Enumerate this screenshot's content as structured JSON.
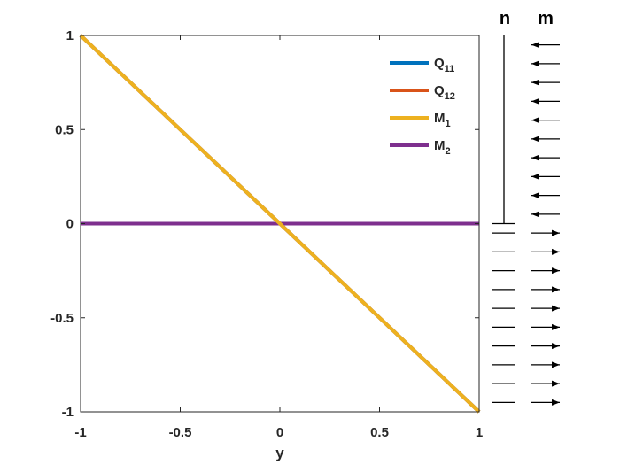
{
  "chart_data": {
    "type": "line",
    "title": "",
    "xlabel": "y",
    "ylabel": "",
    "xlim": [
      -1,
      1
    ],
    "ylim": [
      -1,
      1
    ],
    "xticks": [
      -1,
      -0.5,
      0,
      0.5,
      1
    ],
    "xtick_labels": [
      "-1",
      "-0.5",
      "0",
      "0.5",
      "1"
    ],
    "yticks": [
      -1,
      -0.5,
      0,
      0.5,
      1
    ],
    "ytick_labels": [
      "-1",
      "-0.5",
      "0",
      "0.5",
      "1"
    ],
    "grid": false,
    "legend_position": "top-right",
    "series": [
      {
        "name": "Q11",
        "label_main": "Q",
        "label_sub": "11",
        "color": "#0072BD",
        "x": [
          -1,
          0,
          1
        ],
        "y": [
          1,
          0,
          -1
        ]
      },
      {
        "name": "Q12",
        "label_main": "Q",
        "label_sub": "12",
        "color": "#D95319",
        "x": [
          -1,
          0,
          1
        ],
        "y": [
          1,
          0,
          -1
        ]
      },
      {
        "name": "M1",
        "label_main": "M",
        "label_sub": "1",
        "color": "#EDB120",
        "x": [
          -1,
          0,
          1
        ],
        "y": [
          1,
          0,
          -1
        ]
      },
      {
        "name": "M2",
        "label_main": "M",
        "label_sub": "2",
        "color": "#7E2F8E",
        "x": [
          -1,
          0,
          1
        ],
        "y": [
          0,
          0,
          0
        ]
      }
    ],
    "plot_order": [
      0,
      1,
      3,
      2
    ]
  },
  "diagram": {
    "n_label": "n",
    "m_label": "m",
    "n_positive_extent": 1,
    "n_negative_extent": 1,
    "arrow_levels_upper": [
      0.95,
      0.85,
      0.75,
      0.65,
      0.55,
      0.45,
      0.35,
      0.25,
      0.15,
      0.05
    ],
    "arrow_levels_lower": [
      -0.05,
      -0.15,
      -0.25,
      -0.35,
      -0.45,
      -0.55,
      -0.65,
      -0.75,
      -0.85,
      -0.95
    ]
  }
}
